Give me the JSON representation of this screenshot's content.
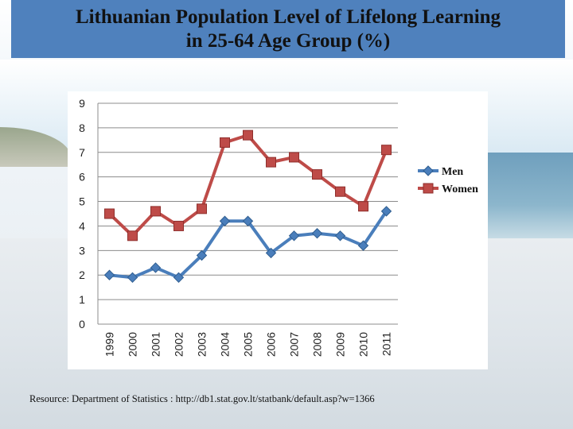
{
  "title": {
    "line1": "Lithuanian Population Level of Lifelong Learning",
    "line2": "in 25-64 Age Group (%)"
  },
  "source_text": "Resource: Department of Statistics : http://db1.stat.gov.lt/statbank/default.asp?w=1366",
  "chart_data": {
    "type": "line",
    "title": "Lithuanian Population Level of Lifelong Learning in 25-64 Age Group (%)",
    "xlabel": "",
    "ylabel": "",
    "categories": [
      "1999",
      "2000",
      "2001",
      "2002",
      "2003",
      "2004",
      "2005",
      "2006",
      "2007",
      "2008",
      "2009",
      "2010",
      "2011"
    ],
    "ylim": [
      0,
      9
    ],
    "yticks": [
      "0",
      "1",
      "2",
      "3",
      "4",
      "5",
      "6",
      "7",
      "8",
      "9"
    ],
    "grid": true,
    "legend_position": "right",
    "series": [
      {
        "name": "Men",
        "color": "#4a7ebb",
        "marker": "diamond",
        "values": [
          2.0,
          1.9,
          2.3,
          1.9,
          2.8,
          4.2,
          4.2,
          2.9,
          3.6,
          3.7,
          3.6,
          3.2,
          4.6
        ]
      },
      {
        "name": "Women",
        "color": "#be4b48",
        "marker": "square",
        "values": [
          4.5,
          3.6,
          4.6,
          4.0,
          4.7,
          7.4,
          7.7,
          6.6,
          6.8,
          6.1,
          5.4,
          4.8,
          7.1
        ]
      }
    ]
  }
}
